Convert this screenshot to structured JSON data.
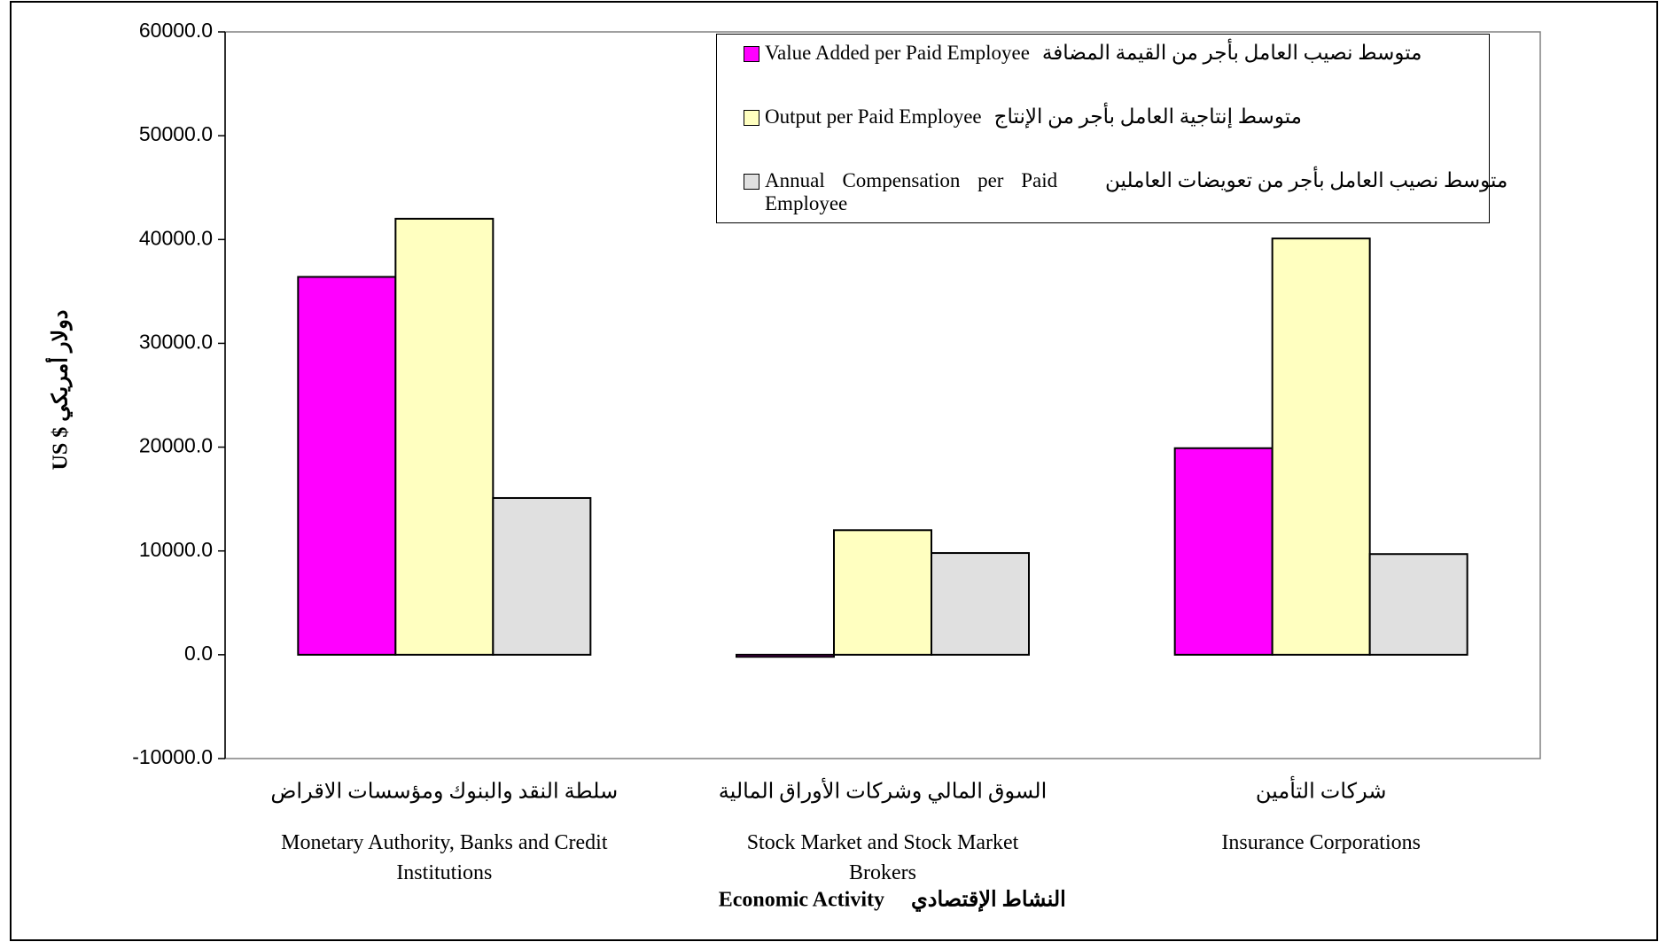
{
  "chart_data": {
    "type": "bar",
    "y_label": "US $ دولار أمريكي",
    "x_label": "Economic Activity",
    "x_label_ar": "النشاط الإقتصادي",
    "categories": [
      "Monetary Authority, Banks and Credit Institutions",
      "Stock Market and Stock Market Brokers",
      "Insurance Corporations"
    ],
    "categories_ar": [
      "سلطة النقد والبنوك ومؤسسات الاقراض",
      "السوق المالي وشركات الأوراق المالية",
      "شركات التأمين"
    ],
    "series": [
      {
        "name": "Value Added per Paid  Employee",
        "name_ar": "متوسط نصيب العامل  بأجر من القيمة  المضافة",
        "color": "#ff00ff",
        "values": [
          36400,
          -200,
          19900
        ]
      },
      {
        "name": "Output per Paid Employee",
        "name_ar": "متوسط إنتاجية العامل  بأجر من الإنتاج",
        "color": "#ffffc0",
        "values": [
          42000,
          12000,
          40100
        ]
      },
      {
        "name": "Annual  Compensation per Paid Employee",
        "name_ar": "متوسط نصيب العامل  بأجر من تعويضات  العاملين",
        "color": "#e0e0e0",
        "values": [
          15100,
          9800,
          9700
        ]
      }
    ],
    "ylim": [
      -10000,
      60000
    ],
    "yticks": [
      {
        "value": -10000,
        "label": "-10000.0"
      },
      {
        "value": 0,
        "label": "0.0"
      },
      {
        "value": 10000,
        "label": "10000.0"
      },
      {
        "value": 20000,
        "label": "20000.0"
      },
      {
        "value": 30000,
        "label": "30000.0"
      },
      {
        "value": 40000,
        "label": "40000.0"
      },
      {
        "value": 50000,
        "label": "50000.0"
      },
      {
        "value": 60000,
        "label": "60000.0"
      }
    ],
    "grid": false,
    "legend": "top-right"
  }
}
